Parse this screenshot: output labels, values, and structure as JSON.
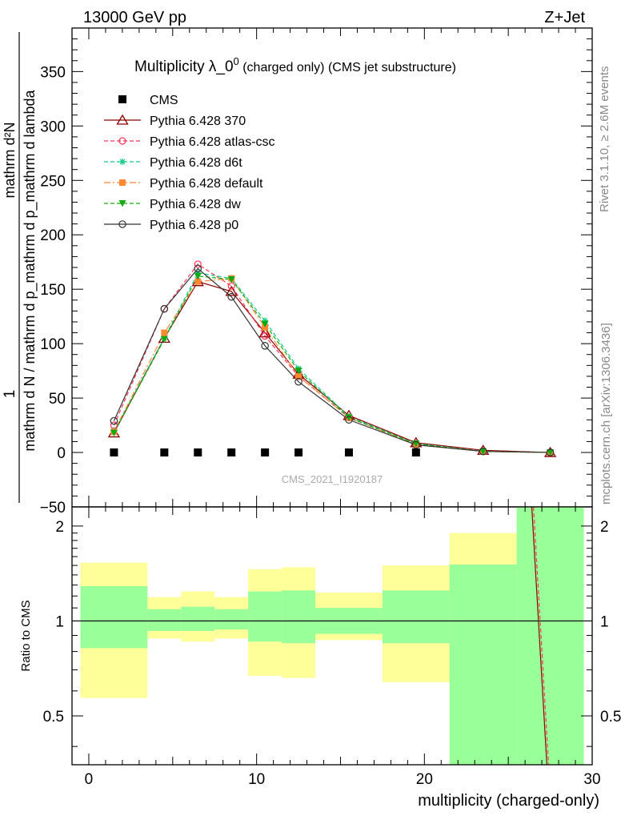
{
  "header": {
    "left": "13000 GeV pp",
    "right": "Z+Jet"
  },
  "side_labels": {
    "rivet": "Rivet 3.1.10, ≥ 2.6M events",
    "mcplots": "mcplots.cern.ch [arXiv:1306.3436]"
  },
  "watermark": "CMS_2021_I1920187",
  "colors": {
    "band_green": "#99ff99",
    "band_yellow": "#ffff99",
    "cms": "#000000",
    "p370": "#8b0000",
    "atlas": "#ff3355",
    "d6t": "#11cc88",
    "default": "#ff8833",
    "dw": "#11aa11",
    "p0": "#333333"
  },
  "chart_data": [
    {
      "type": "line",
      "title_main": "Multiplicity λ_0",
      "title_sup": "0",
      "title_suffix": " (charged only) (CMS jet substructure)",
      "ylabel_top": "1",
      "ylabel_numerator": "mathrm d²N",
      "ylabel_denominator": "mathrm d N / mathrm d p_mathrm d p_mathrm d lambda",
      "ylim": [
        -50,
        390
      ],
      "xlim": [
        -1,
        30
      ],
      "y_ticks": [
        -50,
        0,
        50,
        100,
        150,
        200,
        250,
        300,
        350
      ],
      "y_tick_labels": [
        "−50",
        "0",
        "50",
        "100",
        "150",
        "200",
        "250",
        "300",
        "350"
      ],
      "x": [
        1.5,
        4.5,
        6.5,
        8.5,
        10.5,
        12.5,
        15.5,
        19.5,
        23.5,
        27.5
      ],
      "series": [
        {
          "name": "CMS",
          "style": "cms",
          "values": [
            0,
            0,
            0,
            0,
            0,
            0,
            0,
            0,
            null,
            null
          ]
        },
        {
          "name": "Pythia 6.428 370",
          "style": "p370",
          "values": [
            18,
            105,
            157,
            148,
            110,
            72,
            34,
            9,
            2,
            0
          ]
        },
        {
          "name": "Pythia 6.428 atlas-csc",
          "style": "atlas",
          "values": [
            25,
            132,
            173,
            153,
            107,
            70,
            32,
            8,
            1,
            0
          ]
        },
        {
          "name": "Pythia 6.428 d6t",
          "style": "d6t",
          "values": [
            20,
            105,
            165,
            160,
            121,
            77,
            33,
            8,
            1,
            0
          ]
        },
        {
          "name": "Pythia 6.428 default",
          "style": "default",
          "values": [
            19,
            110,
            157,
            160,
            115,
            70,
            32,
            7,
            1,
            0
          ]
        },
        {
          "name": "Pythia 6.428 dw",
          "style": "dw",
          "values": [
            18,
            104,
            162,
            159,
            118,
            75,
            32,
            8,
            1,
            0
          ]
        },
        {
          "name": "Pythia 6.428 p0",
          "style": "p0",
          "values": [
            29,
            132,
            169,
            143,
            98,
            65,
            30,
            7,
            1,
            0
          ]
        }
      ]
    },
    {
      "type": "area",
      "ylabel": "Ratio to CMS",
      "xlabel": "multiplicity (charged-only)",
      "ylim": [
        0.35,
        2.3
      ],
      "xlim": [
        -1,
        30
      ],
      "y_ticks": [
        0.5,
        1,
        2
      ],
      "y_tick_labels": [
        "0.5",
        "1",
        "2"
      ],
      "x_ticks": [
        0,
        10,
        20,
        30
      ],
      "x_tick_labels": [
        "0",
        "10",
        "20",
        "30"
      ],
      "reference": 1,
      "bins": [
        {
          "x": [
            -0.5,
            3.5
          ],
          "inner": [
            0.82,
            1.29
          ],
          "outer": [
            0.57,
            1.53
          ]
        },
        {
          "x": [
            3.5,
            5.5
          ],
          "inner": [
            0.93,
            1.09
          ],
          "outer": [
            0.88,
            1.19
          ]
        },
        {
          "x": [
            5.5,
            7.5
          ],
          "inner": [
            0.93,
            1.11
          ],
          "outer": [
            0.86,
            1.24
          ]
        },
        {
          "x": [
            7.5,
            9.5
          ],
          "inner": [
            0.94,
            1.09
          ],
          "outer": [
            0.88,
            1.19
          ]
        },
        {
          "x": [
            9.5,
            11.5
          ],
          "inner": [
            0.86,
            1.24
          ],
          "outer": [
            0.67,
            1.46
          ]
        },
        {
          "x": [
            11.5,
            13.5
          ],
          "inner": [
            0.85,
            1.25
          ],
          "outer": [
            0.66,
            1.48
          ]
        },
        {
          "x": [
            13.5,
            17.5
          ],
          "inner": [
            0.91,
            1.1
          ],
          "outer": [
            0.87,
            1.23
          ]
        },
        {
          "x": [
            17.5,
            21.5
          ],
          "inner": [
            0.85,
            1.25
          ],
          "outer": [
            0.64,
            1.5
          ]
        },
        {
          "x": [
            21.5,
            25.5
          ],
          "inner": [
            0.35,
            1.51
          ],
          "outer": [
            0.35,
            1.9
          ]
        },
        {
          "x": [
            25.5,
            29.5
          ],
          "inner": [
            0.35,
            2.3
          ],
          "outer": [
            0.35,
            2.3
          ]
        }
      ],
      "ratio_lines": [
        {
          "style": "p370",
          "points": [
            [
              26.4,
              2.3
            ],
            [
              27.3,
              0.35
            ]
          ]
        },
        {
          "style": "atlas",
          "points": [
            [
              26.5,
              2.3
            ],
            [
              27.4,
              0.35
            ]
          ]
        }
      ]
    }
  ]
}
